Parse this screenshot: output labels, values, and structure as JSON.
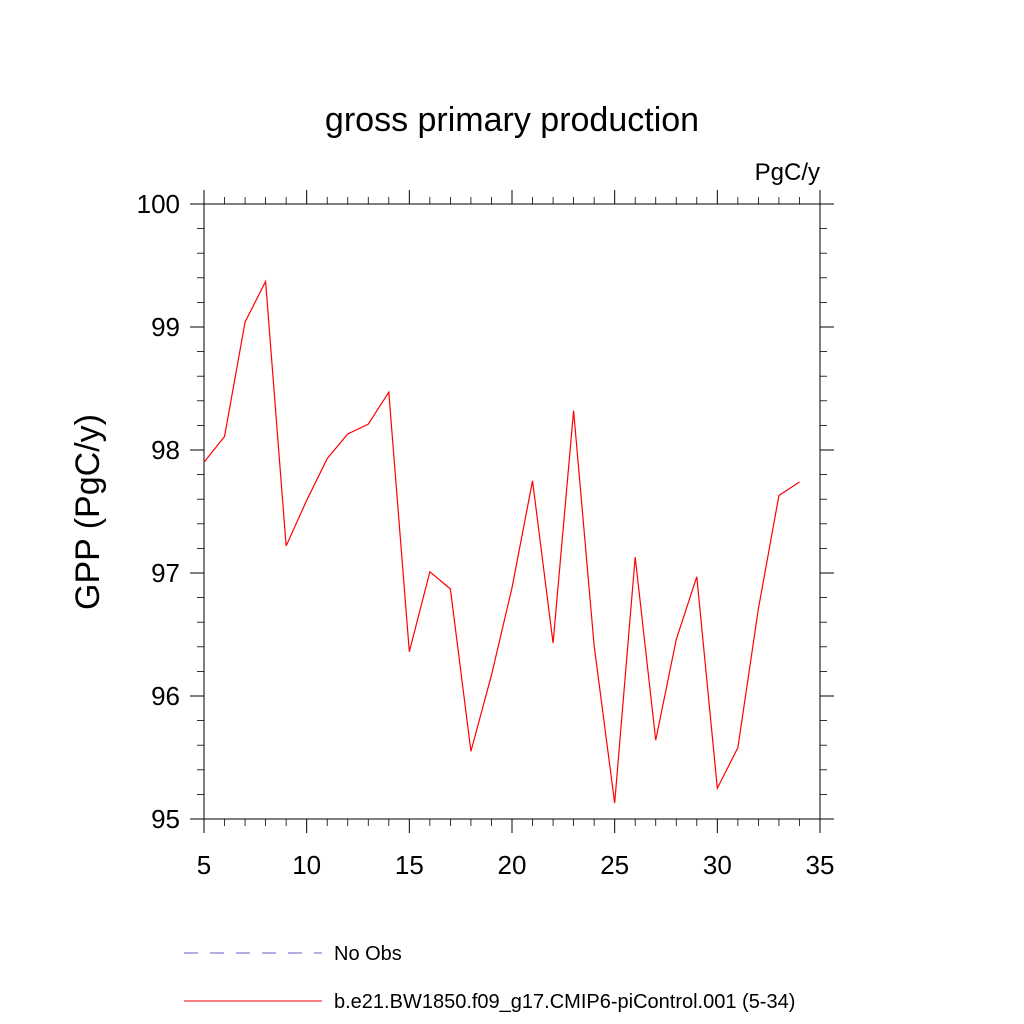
{
  "chart_data": {
    "type": "line",
    "title": "gross primary production",
    "units_label": "PgC/y",
    "ylabel": "GPP  (PgC/y)",
    "xlabel": "",
    "xlim": [
      5,
      35
    ],
    "ylim": [
      95,
      100
    ],
    "xticks": [
      5,
      10,
      15,
      20,
      25,
      30,
      35
    ],
    "yticks": [
      95,
      96,
      97,
      98,
      99,
      100
    ],
    "series": [
      {
        "name": "b.e21.BW1850.f09_g17.CMIP6-piControl.001 (5-34)",
        "color": "#ff0000",
        "dash": "solid",
        "x": [
          5,
          6,
          7,
          8,
          9,
          10,
          11,
          12,
          13,
          14,
          15,
          16,
          17,
          18,
          19,
          20,
          21,
          22,
          23,
          24,
          25,
          26,
          27,
          28,
          29,
          30,
          31,
          32,
          33,
          34
        ],
        "y": [
          97.9,
          98.11,
          99.04,
          99.37,
          97.22,
          97.59,
          97.93,
          98.13,
          98.21,
          98.47,
          96.36,
          97.01,
          96.87,
          95.55,
          96.17,
          96.88,
          97.75,
          96.43,
          98.32,
          96.41,
          95.13,
          97.13,
          95.64,
          96.46,
          96.97,
          95.25,
          95.58,
          96.71,
          97.63,
          97.74
        ]
      }
    ],
    "legend": {
      "position": "bottom",
      "entries": [
        {
          "label": "No Obs",
          "color": "#6a5acd",
          "dash": "dashed"
        },
        {
          "label": "b.e21.BW1850.f09_g17.CMIP6-piControl.001 (5-34)",
          "color": "#ff0000",
          "dash": "solid"
        }
      ]
    }
  }
}
